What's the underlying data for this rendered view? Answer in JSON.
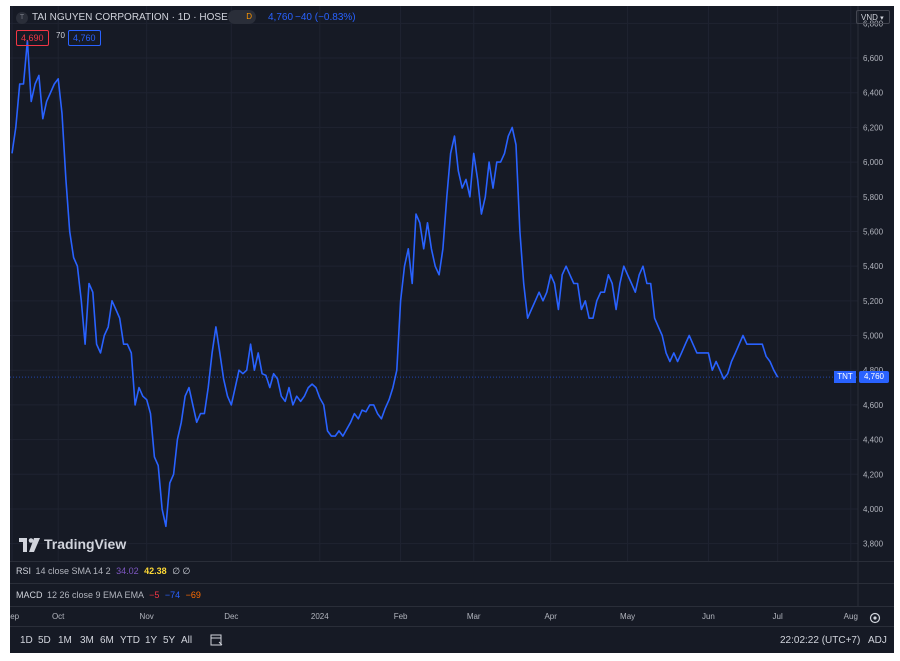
{
  "header": {
    "symbol_title": "TAI NGUYEN CORPORATION · 1D · HOSE",
    "delay_badge": "D",
    "last_price": "4,760",
    "change": "−40 (−0.83%)",
    "bid": "4,690",
    "spread": "70",
    "ask": "4,760"
  },
  "currency_button": "VND",
  "price_label": {
    "ticker": "TNT",
    "value": "4,760"
  },
  "watermark": "TradingView",
  "indicators": {
    "rsi": {
      "name": "RSI",
      "params": "14 close SMA 14 2",
      "v1": "34.02",
      "v2": "42.38",
      "v3": "∅ ∅"
    },
    "macd": {
      "name": "MACD",
      "params": "12 26 close 9 EMA EMA",
      "v1": "−5",
      "v2": "−74",
      "v3": "−69"
    }
  },
  "timeframes": [
    "1D",
    "5D",
    "1M",
    "3M",
    "6M",
    "YTD",
    "1Y",
    "5Y",
    "All"
  ],
  "status": {
    "clock": "22:02:22 (UTC+7)",
    "adj": "ADJ"
  },
  "colors": {
    "line": "#2962ff",
    "bg": "#161a25",
    "text": "#b2b5be",
    "down": "#f23645",
    "up": "#2962ff"
  },
  "chart_data": {
    "type": "line",
    "ylim": [
      3700,
      6900
    ],
    "y_ticks": [
      3800,
      4000,
      4200,
      4400,
      4600,
      4800,
      5000,
      5200,
      5400,
      5600,
      5800,
      6000,
      6200,
      6400,
      6600,
      6800
    ],
    "y_tick_labels": [
      "3,800",
      "4,000",
      "4,200",
      "4,400",
      "4,600",
      "4,800",
      "5,000",
      "5,200",
      "5,400",
      "5,600",
      "5,800",
      "6,000",
      "6,200",
      "6,400",
      "6,600",
      "6,800"
    ],
    "x_labels": [
      "Sep",
      "Oct",
      "Nov",
      "Dec",
      "2024",
      "Feb",
      "Mar",
      "Apr",
      "May",
      "Jun",
      "Jul",
      "Aug"
    ],
    "x_label_pos": [
      0,
      12,
      35,
      57,
      80,
      101,
      120,
      140,
      160,
      181,
      199,
      218
    ],
    "x_count": 211,
    "series": [
      {
        "values": [
          6050,
          6200,
          6450,
          6450,
          6700,
          6350,
          6450,
          6500,
          6250,
          6350,
          6400,
          6450,
          6480,
          6280,
          5900,
          5600,
          5450,
          5400,
          5200,
          4950,
          5300,
          5250,
          4950,
          4900,
          5000,
          5050,
          5200,
          5150,
          5100,
          4950,
          4950,
          4900,
          4600,
          4700,
          4650,
          4630,
          4550,
          4300,
          4250,
          4000,
          3900,
          4150,
          4200,
          4400,
          4500,
          4650,
          4700,
          4600,
          4500,
          4550,
          4550,
          4700,
          4900,
          5050,
          4900,
          4750,
          4650,
          4600,
          4700,
          4800,
          4780,
          4800,
          4950,
          4800,
          4900,
          4780,
          4770,
          4700,
          4780,
          4750,
          4650,
          4620,
          4700,
          4600,
          4650,
          4620,
          4650,
          4700,
          4720,
          4700,
          4640,
          4600,
          4450,
          4420,
          4420,
          4450,
          4420,
          4460,
          4500,
          4550,
          4520,
          4570,
          4560,
          4600,
          4600,
          4550,
          4520,
          4580,
          4630,
          4700,
          4800,
          5200,
          5400,
          5500,
          5300,
          5700,
          5650,
          5500,
          5650,
          5500,
          5400,
          5350,
          5500,
          5800,
          6050,
          6150,
          5950,
          5850,
          5900,
          5800,
          6050,
          5900,
          5700,
          5800,
          6000,
          5850,
          6000,
          6000,
          6050,
          6150,
          6200,
          6100,
          5600,
          5300,
          5100,
          5150,
          5200,
          5250,
          5200,
          5250,
          5350,
          5300,
          5150,
          5350,
          5400,
          5350,
          5300,
          5300,
          5150,
          5200,
          5100,
          5100,
          5200,
          5250,
          5250,
          5350,
          5300,
          5150,
          5300,
          5400,
          5350,
          5300,
          5250,
          5350,
          5400,
          5300,
          5300,
          5100,
          5050,
          5000,
          4900,
          4850,
          4900,
          4850,
          4900,
          4950,
          5000,
          4950,
          4900,
          4900,
          4900,
          4900,
          4800,
          4850,
          4800,
          4750,
          4780,
          4850,
          4900,
          4950,
          5000,
          4950,
          4950,
          4950,
          4950,
          4950,
          4880,
          4850,
          4800,
          4760
        ]
      }
    ]
  }
}
